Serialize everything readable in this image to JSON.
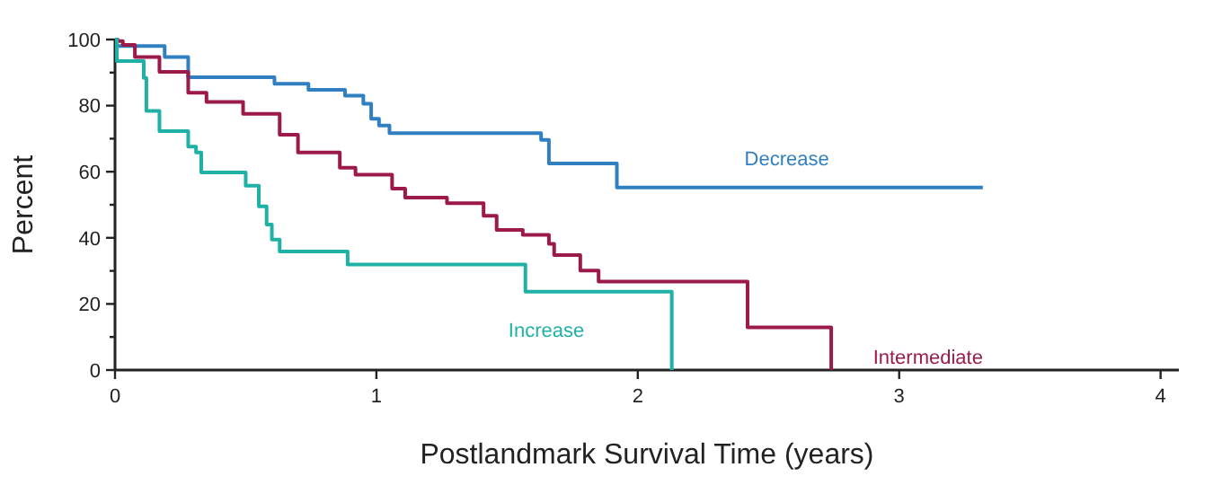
{
  "chart_data": {
    "type": "step",
    "xlabel": "Postlandmark Survival Time (years)",
    "ylabel": "Percent",
    "xlim": [
      0,
      4.07
    ],
    "xticks": [
      0,
      1,
      2,
      3,
      4
    ],
    "ylim": [
      0,
      100
    ],
    "yticks": [
      0,
      {
        "value": 10,
        "label": null
      },
      20,
      {
        "value": 30,
        "label": null
      },
      40,
      {
        "value": 50,
        "label": null
      },
      60,
      {
        "value": 70,
        "label": null
      },
      80,
      {
        "value": 90,
        "label": null
      },
      100
    ],
    "grid": false,
    "marker": "none",
    "line_style": "solid",
    "series": [
      {
        "name": "Decrease",
        "color": "#2f7fc1",
        "x": [
          0,
          0.19,
          0.28,
          0.33,
          0.61,
          0.74,
          0.88,
          0.95,
          0.98,
          1.01,
          1.05,
          1.63,
          1.66,
          1.92,
          3.32
        ],
        "values": [
          98,
          94.7,
          88.6,
          88.6,
          86.6,
          84.8,
          83,
          80.6,
          76,
          74,
          71.7,
          69.6,
          62.5,
          55.2,
          55.2
        ]
      },
      {
        "name": "Intermediate",
        "color": "#9c1a4a",
        "x": [
          0,
          0.01,
          0.03,
          0.076,
          0.17,
          0.28,
          0.35,
          0.49,
          0.63,
          0.7,
          0.86,
          0.92,
          1.06,
          1.11,
          1.27,
          1.41,
          1.46,
          1.56,
          1.66,
          1.68,
          1.78,
          1.85,
          2.42,
          2.74
        ],
        "values": [
          100,
          99.5,
          98.4,
          94.7,
          90.2,
          83.9,
          81.1,
          77.5,
          71.2,
          65.8,
          61.2,
          59.1,
          54.9,
          52.2,
          50.5,
          46.7,
          42.4,
          40.9,
          38.2,
          34.8,
          30.1,
          26.8,
          12.9,
          0
        ]
      },
      {
        "name": "Increase",
        "color": "#1fb0a6",
        "x": [
          0,
          0.007,
          0.11,
          0.12,
          0.17,
          0.28,
          0.31,
          0.33,
          0.5,
          0.55,
          0.58,
          0.6,
          0.63,
          0.89,
          1.57,
          2.13
        ],
        "values": [
          100,
          93.5,
          88.4,
          78.4,
          72.3,
          67.6,
          65.8,
          59.8,
          55.8,
          49.5,
          44,
          39.5,
          35.9,
          31.9,
          23.7,
          0
        ]
      }
    ]
  }
}
